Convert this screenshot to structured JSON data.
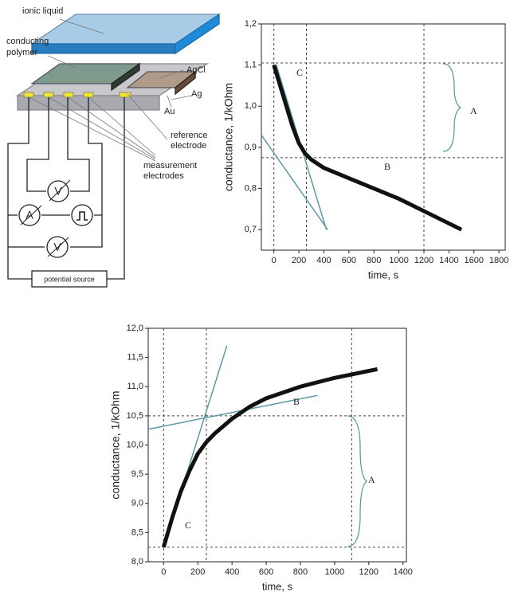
{
  "diagram": {
    "ionic_liquid": "ionic liquid",
    "conducting_polymer": [
      "conducting",
      "polymer"
    ],
    "agcl": "AgCl",
    "ag": "Ag",
    "au": "Au",
    "reference_electrode": [
      "reference",
      "electrode"
    ],
    "measurement_electrodes": [
      "measurement",
      "electrodes"
    ],
    "potential_source": "potential source",
    "ammeter": "A",
    "voltmeter_top": "V",
    "voltmeter_bottom": "V"
  },
  "chart_data": [
    {
      "type": "line",
      "xlabel": "time, s",
      "ylabel": "conductance, 1/kOhm",
      "x": [
        0,
        50,
        100,
        150,
        200,
        250,
        300,
        400,
        600,
        800,
        1000,
        1200,
        1400,
        1500
      ],
      "series": [
        {
          "color": "#111111",
          "values": [
            1.1,
            1.05,
            1.0,
            0.95,
            0.91,
            0.885,
            0.87,
            0.85,
            0.825,
            0.8,
            0.775,
            0.745,
            0.715,
            0.7
          ]
        }
      ],
      "xlim": [
        -100,
        1850
      ],
      "ylim": [
        0.65,
        1.2
      ],
      "xticks": [
        0,
        200,
        400,
        600,
        800,
        1000,
        1200,
        1400,
        1600,
        1800
      ],
      "yticks": [
        {
          "value": 0.7,
          "label": "0,7"
        },
        {
          "value": 0.8,
          "label": "0,8"
        },
        {
          "value": 0.9,
          "label": "0,9"
        },
        {
          "value": 1.0,
          "label": "1,0"
        },
        {
          "value": 1.1,
          "label": "1,1"
        },
        {
          "value": 1.2,
          "label": "1,2"
        }
      ],
      "vlines": [
        0,
        260,
        1200
      ],
      "hlines": [
        1.105,
        0.875
      ],
      "tangents": [
        {
          "x": [
            -100,
            430
          ],
          "y": [
            0.93,
            0.7
          ]
        },
        {
          "x": [
            20,
            420
          ],
          "y": [
            1.1,
            0.7
          ]
        }
      ],
      "annotations": [
        "A",
        "B",
        "C"
      ]
    },
    {
      "type": "line",
      "xlabel": "time, s",
      "ylabel": "conductance, 1/kOhm",
      "x": [
        0,
        50,
        100,
        150,
        200,
        250,
        300,
        400,
        500,
        600,
        800,
        1000,
        1250
      ],
      "series": [
        {
          "color": "#111111",
          "values": [
            8.25,
            8.75,
            9.2,
            9.55,
            9.85,
            10.05,
            10.2,
            10.45,
            10.65,
            10.8,
            11.0,
            11.15,
            11.3
          ]
        }
      ],
      "xlim": [
        -90,
        1420
      ],
      "ylim": [
        8.0,
        12.0
      ],
      "xticks": [
        0,
        200,
        400,
        600,
        800,
        1000,
        1200,
        1400
      ],
      "yticks": [
        {
          "value": 8.0,
          "label": "8,0"
        },
        {
          "value": 8.5,
          "label": "8,5"
        },
        {
          "value": 9.0,
          "label": "9,0"
        },
        {
          "value": 9.5,
          "label": "9,5"
        },
        {
          "value": 10.0,
          "label": "10,0"
        },
        {
          "value": 10.5,
          "label": "10,5"
        },
        {
          "value": 11.0,
          "label": "11,0"
        },
        {
          "value": 11.5,
          "label": "11,5"
        },
        {
          "value": 12.0,
          "label": "12,0"
        }
      ],
      "vlines": [
        0,
        250,
        1100
      ],
      "hlines": [
        10.5,
        8.25
      ],
      "tangents": [
        {
          "x": [
            -90,
            900
          ],
          "y": [
            10.27,
            10.85
          ]
        },
        {
          "x": [
            0,
            370
          ],
          "y": [
            8.25,
            11.7
          ]
        }
      ],
      "annotations": [
        "A",
        "B",
        "C"
      ]
    }
  ]
}
